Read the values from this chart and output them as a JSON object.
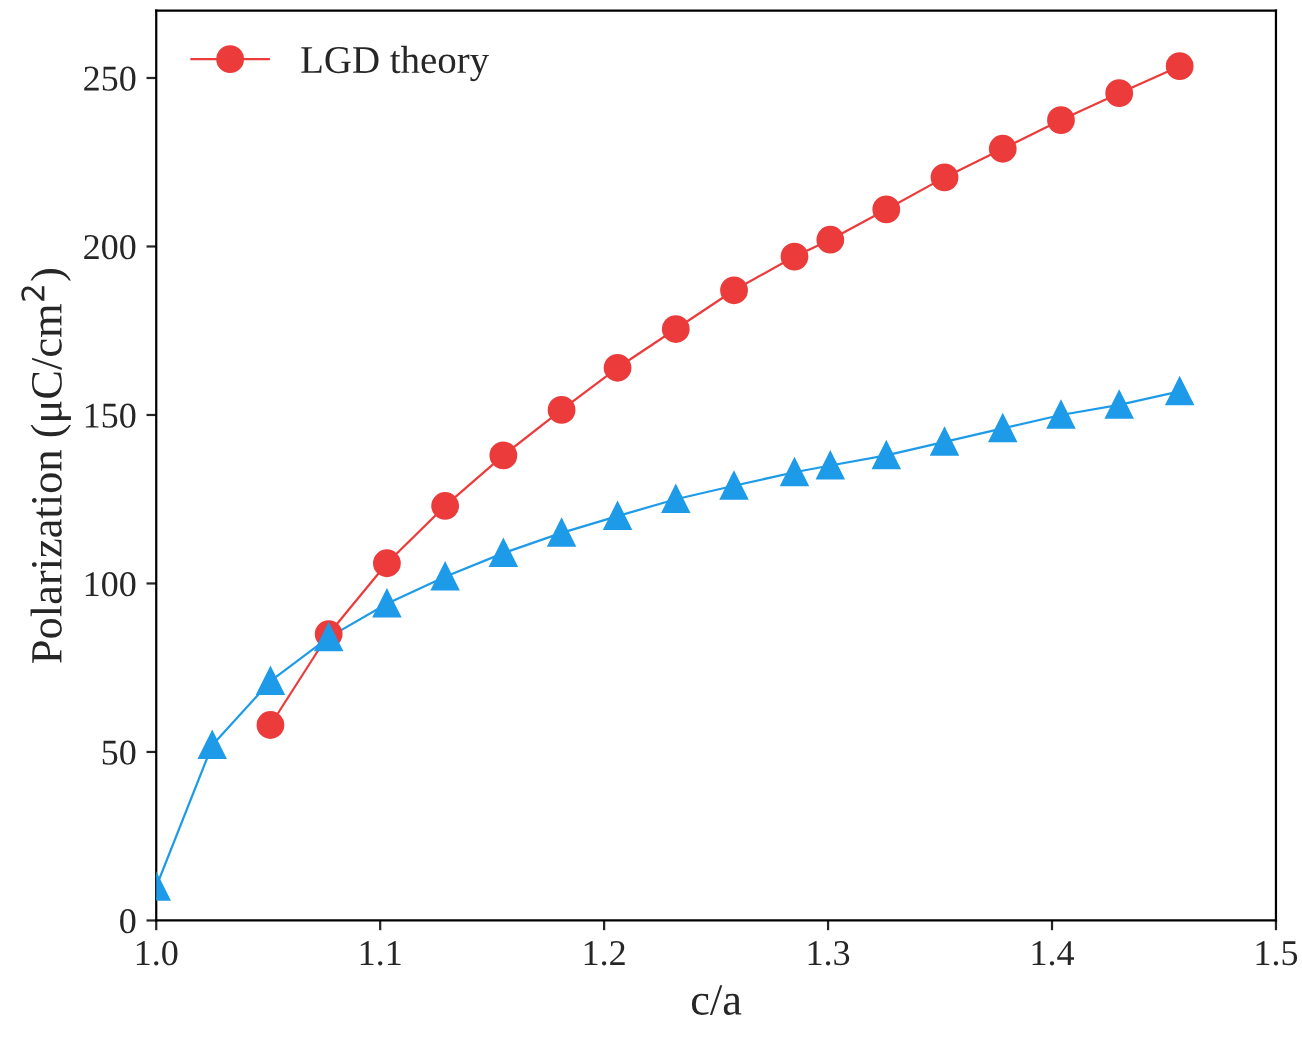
{
  "chart_data": {
    "type": "line",
    "xlabel": "c/a",
    "ylabel": "Polarization (μC/cm$^{2}$)",
    "xlim": [
      1.0,
      1.5
    ],
    "xticks": [
      {
        "value": 1.0,
        "label": "1.0"
      },
      1.1,
      1.2,
      1.3,
      1.4,
      {
        "value": 1.5,
        "label": "1.5"
      }
    ],
    "ylim": [
      0,
      270
    ],
    "yticks": [
      0,
      50,
      100,
      150,
      200,
      250
    ],
    "grid": false,
    "legend": "top left",
    "line_style": "solid",
    "series": [
      {
        "color": "#1e9be8",
        "marker": "triangle",
        "x": [
          1.0,
          1.025,
          1.051,
          1.077,
          1.103,
          1.129,
          1.155,
          1.181,
          1.206,
          1.232,
          1.258,
          1.285,
          1.301,
          1.326,
          1.352,
          1.378,
          1.404,
          1.43,
          1.457
        ],
        "values": [
          10,
          52,
          71,
          84,
          94,
          102,
          109,
          115,
          120,
          125,
          129,
          133,
          135,
          138,
          142,
          146,
          150,
          153,
          157
        ]
      },
      {
        "name": "LGD theory",
        "color": "#ec3b3b",
        "marker": "circle",
        "x": [
          1.051,
          1.077,
          1.103,
          1.129,
          1.155,
          1.181,
          1.206,
          1.232,
          1.258,
          1.285,
          1.301,
          1.326,
          1.352,
          1.378,
          1.404,
          1.43,
          1.457
        ],
        "values": [
          58,
          85,
          106,
          123,
          138,
          151.5,
          164,
          175.5,
          187,
          197,
          202,
          211,
          220.5,
          229,
          237.5,
          245.5,
          253.5
        ]
      }
    ]
  }
}
